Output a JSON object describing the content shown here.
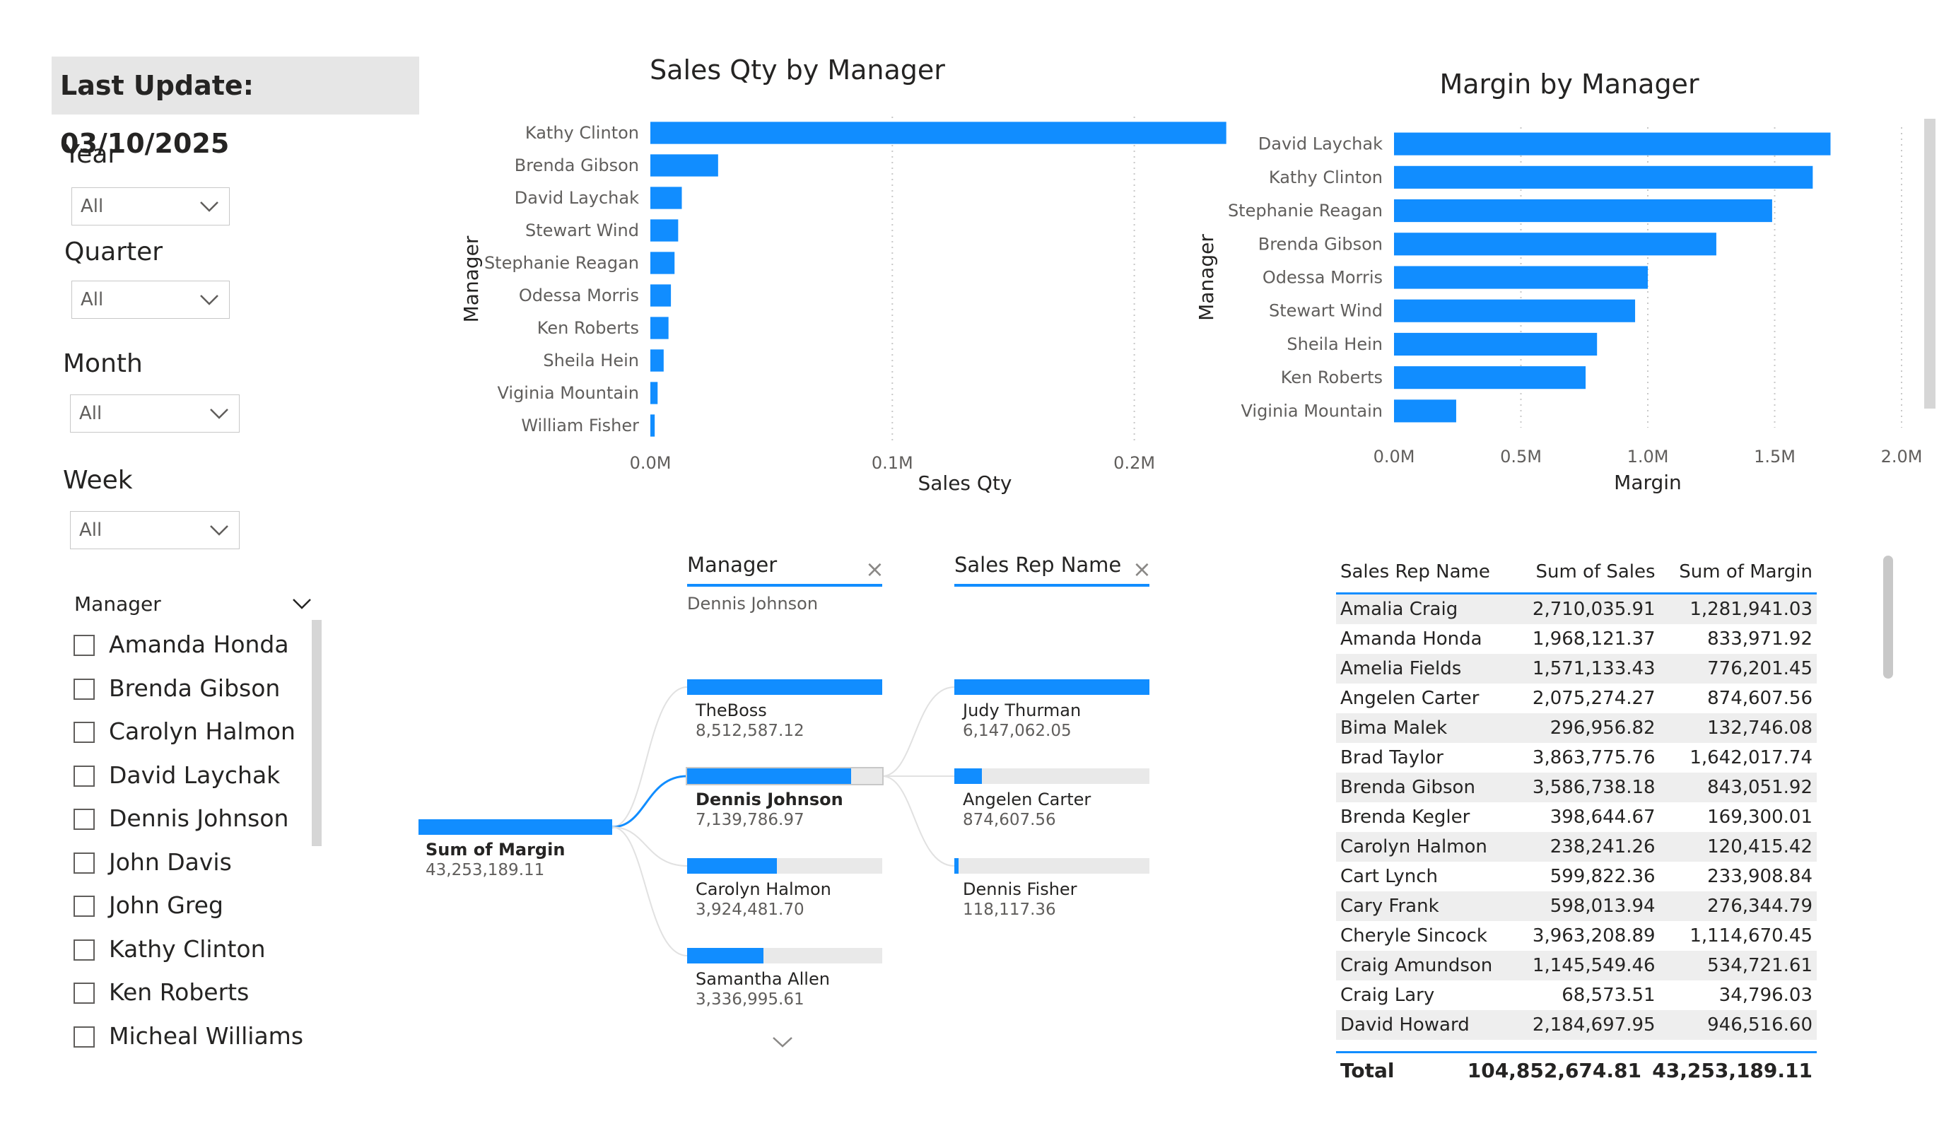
{
  "header": {
    "last_update": "Last Update: 03/10/2025"
  },
  "slicers": {
    "year": {
      "title": "Year",
      "value": "All"
    },
    "quarter": {
      "title": "Quarter",
      "value": "All"
    },
    "month": {
      "title": "Month",
      "value": "All"
    },
    "week": {
      "title": "Week",
      "value": "All"
    },
    "manager": {
      "title": "Manager",
      "items": [
        "Amanda Honda",
        "Brenda Gibson",
        "Carolyn Halmon",
        "David Laychak",
        "Dennis Johnson",
        "John Davis",
        "John Greg",
        "Kathy Clinton",
        "Ken Roberts",
        "Micheal Williams"
      ]
    }
  },
  "chart_data": [
    {
      "type": "bar",
      "orientation": "horizontal",
      "title": "Sales Qty by Manager",
      "xlabel": "Sales Qty",
      "ylabel": "Manager",
      "categories": [
        "Kathy Clinton",
        "Brenda Gibson",
        "David Laychak",
        "Stewart Wind",
        "Stephanie Reagan",
        "Odessa Morris",
        "Ken Roberts",
        "Sheila Hein",
        "Viginia Mountain",
        "William Fisher"
      ],
      "values": [
        238000,
        28000,
        13000,
        11500,
        10000,
        8500,
        7500,
        5500,
        3000,
        1800
      ],
      "xlim": [
        0,
        260000
      ],
      "ticks": [
        0,
        100000,
        200000
      ],
      "tick_labels": [
        "0.0M",
        "0.1M",
        "0.2M"
      ],
      "color": "#118dff"
    },
    {
      "type": "bar",
      "orientation": "horizontal",
      "title": "Margin by Manager",
      "xlabel": "Margin",
      "ylabel": "Manager",
      "categories": [
        "David Laychak",
        "Kathy Clinton",
        "Stephanie Reagan",
        "Brenda Gibson",
        "Odessa Morris",
        "Stewart Wind",
        "Sheila Hein",
        "Ken Roberts",
        "Viginia Mountain"
      ],
      "values": [
        1720000,
        1650000,
        1490000,
        1270000,
        1000000,
        950000,
        800000,
        755000,
        245000
      ],
      "xlim": [
        0,
        2000000
      ],
      "ticks": [
        0,
        500000,
        1000000,
        1500000,
        2000000
      ],
      "tick_labels": [
        "0.0M",
        "0.5M",
        "1.0M",
        "1.5M",
        "2.0M"
      ],
      "color": "#118dff"
    }
  ],
  "decomp_tree": {
    "levels": [
      {
        "title": "Manager",
        "subtitle": "Dennis Johnson"
      },
      {
        "title": "Sales Rep Name",
        "subtitle": ""
      }
    ],
    "root": {
      "label": "Sum of Margin",
      "value": "43,253,189.11",
      "fraction": 1.0
    },
    "managers": [
      {
        "name": "TheBoss",
        "value": "8,512,587.12",
        "fraction": 1.0
      },
      {
        "name": "Dennis Johnson",
        "value": "7,139,786.97",
        "fraction": 0.84
      },
      {
        "name": "Carolyn Halmon",
        "value": "3,924,481.70",
        "fraction": 0.46
      },
      {
        "name": "Samantha Allen",
        "value": "3,336,995.61",
        "fraction": 0.39
      }
    ],
    "reps": [
      {
        "name": "Judy Thurman",
        "value": "6,147,062.05",
        "fraction": 1.0
      },
      {
        "name": "Angelen Carter",
        "value": "874,607.56",
        "fraction": 0.14
      },
      {
        "name": "Dennis Fisher",
        "value": "118,117.36",
        "fraction": 0.02
      }
    ]
  },
  "table": {
    "headers": [
      "Sales Rep Name",
      "Sum of Sales",
      "Sum of Margin"
    ],
    "rows": [
      [
        "Amalia Craig",
        "2,710,035.91",
        "1,281,941.03"
      ],
      [
        "Amanda Honda",
        "1,968,121.37",
        "833,971.92"
      ],
      [
        "Amelia Fields",
        "1,571,133.43",
        "776,201.45"
      ],
      [
        "Angelen Carter",
        "2,075,274.27",
        "874,607.56"
      ],
      [
        "Bima Malek",
        "296,956.82",
        "132,746.08"
      ],
      [
        "Brad Taylor",
        "3,863,775.76",
        "1,642,017.74"
      ],
      [
        "Brenda Gibson",
        "3,586,738.18",
        "843,051.92"
      ],
      [
        "Brenda Kegler",
        "398,644.67",
        "169,300.01"
      ],
      [
        "Carolyn Halmon",
        "238,241.26",
        "120,415.42"
      ],
      [
        "Cart Lynch",
        "599,822.36",
        "233,908.84"
      ],
      [
        "Cary Frank",
        "598,013.94",
        "276,344.79"
      ],
      [
        "Cheryle Sincock",
        "3,963,208.89",
        "1,114,670.45"
      ],
      [
        "Craig Amundson",
        "1,145,549.46",
        "534,721.61"
      ],
      [
        "Craig Lary",
        "68,573.51",
        "34,796.03"
      ],
      [
        "David Howard",
        "2,184,697.95",
        "946,516.60"
      ]
    ],
    "total": {
      "label": "Total",
      "sales": "104,852,674.81",
      "margin": "43,253,189.11"
    }
  }
}
